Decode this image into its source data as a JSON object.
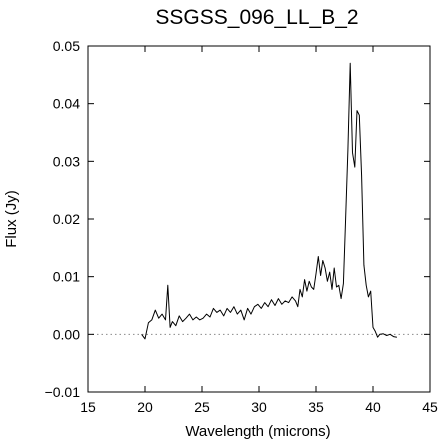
{
  "chart_data": {
    "type": "line",
    "title": "SSGSS_096_LL_B_2",
    "xlabel": "Wavelength (microns)",
    "ylabel": "Flux (Jy)",
    "xlim": [
      15,
      45
    ],
    "ylim": [
      -0.01,
      0.05
    ],
    "xticks": [
      15,
      20,
      25,
      30,
      35,
      40,
      45
    ],
    "xtick_labels": [
      "15",
      "20",
      "25",
      "30",
      "35",
      "40",
      "45"
    ],
    "yticks": [
      -0.01,
      0.0,
      0.01,
      0.02,
      0.03,
      0.04,
      0.05
    ],
    "ytick_labels": [
      "−0.01",
      "0.00",
      "0.01",
      "0.02",
      "0.03",
      "0.04",
      "0.05"
    ],
    "reference_line": {
      "y": 0.0,
      "style": "dotted"
    },
    "grid": false,
    "series": [
      {
        "color": "#000000",
        "x": [
          19.7,
          20.0,
          20.3,
          20.6,
          20.9,
          21.2,
          21.5,
          21.8,
          22.0,
          22.2,
          22.4,
          22.7,
          23.0,
          23.3,
          23.6,
          23.9,
          24.2,
          24.5,
          24.8,
          25.1,
          25.4,
          25.7,
          26.0,
          26.3,
          26.6,
          26.9,
          27.2,
          27.5,
          27.8,
          28.1,
          28.4,
          28.7,
          29.0,
          29.3,
          29.6,
          29.9,
          30.2,
          30.5,
          30.8,
          31.1,
          31.4,
          31.7,
          32.0,
          32.3,
          32.6,
          32.9,
          33.2,
          33.4,
          33.6,
          33.8,
          34.0,
          34.2,
          34.4,
          34.6,
          34.8,
          35.0,
          35.2,
          35.4,
          35.6,
          35.8,
          36.0,
          36.2,
          36.4,
          36.6,
          36.8,
          37.0,
          37.2,
          37.4,
          37.6,
          37.8,
          38.0,
          38.2,
          38.4,
          38.6,
          38.8,
          39.0,
          39.2,
          39.4,
          39.6,
          39.8,
          40.0,
          40.2,
          40.4,
          40.6,
          40.9,
          41.2,
          41.5,
          41.8,
          42.1
        ],
        "y": [
          0.0,
          -0.0008,
          0.002,
          0.0025,
          0.0042,
          0.0028,
          0.0035,
          0.0025,
          0.0085,
          0.0012,
          0.0022,
          0.0015,
          0.0032,
          0.0022,
          0.0028,
          0.0035,
          0.0025,
          0.003,
          0.0025,
          0.0028,
          0.0035,
          0.003,
          0.0045,
          0.0038,
          0.0042,
          0.0032,
          0.0045,
          0.0038,
          0.0048,
          0.0035,
          0.0042,
          0.0025,
          0.0045,
          0.0035,
          0.0048,
          0.0052,
          0.0045,
          0.0055,
          0.0048,
          0.006,
          0.005,
          0.0062,
          0.0052,
          0.0058,
          0.0055,
          0.0065,
          0.0058,
          0.0048,
          0.0078,
          0.0065,
          0.0095,
          0.0075,
          0.0092,
          0.0082,
          0.0078,
          0.0105,
          0.0135,
          0.0102,
          0.0128,
          0.0115,
          0.0092,
          0.0108,
          0.0078,
          0.0115,
          0.0082,
          0.0085,
          0.0062,
          0.0088,
          0.02,
          0.032,
          0.047,
          0.0315,
          0.029,
          0.0388,
          0.038,
          0.0275,
          0.012,
          0.0085,
          0.0065,
          0.0075,
          0.0012,
          0.0005,
          -0.0005,
          0.0,
          0.0001,
          -0.0002,
          0.0,
          -0.0004,
          -0.0005
        ]
      }
    ]
  }
}
